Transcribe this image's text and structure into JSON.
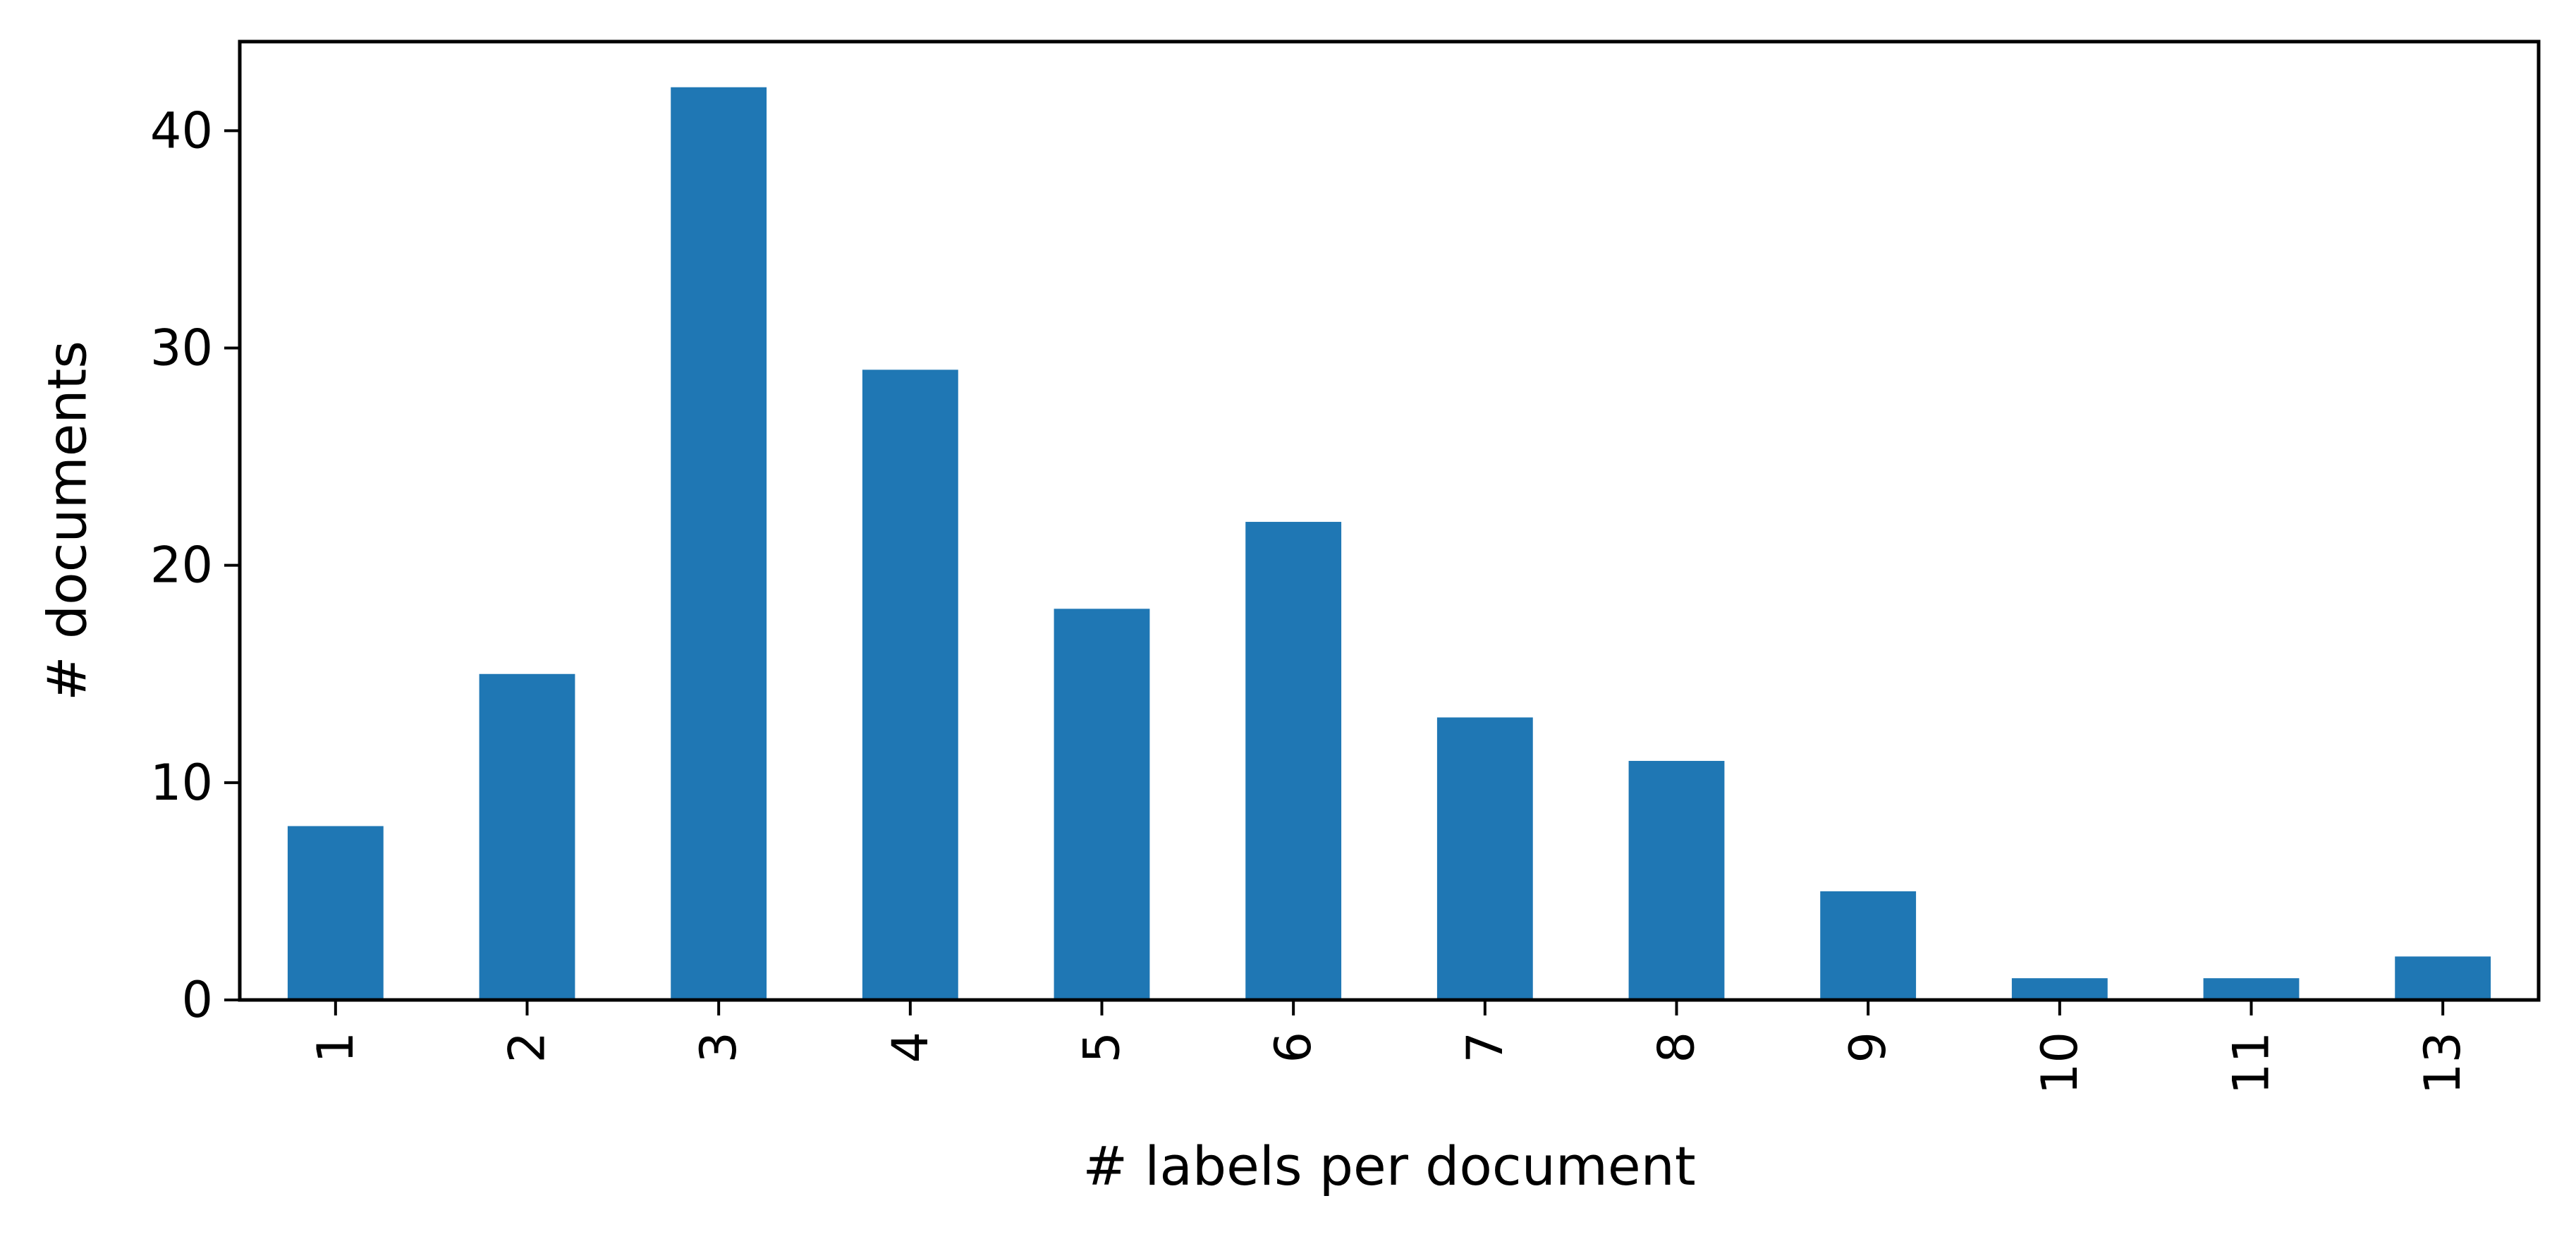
{
  "chart_data": {
    "type": "bar",
    "categories": [
      "1",
      "2",
      "3",
      "4",
      "5",
      "6",
      "7",
      "8",
      "9",
      "10",
      "11",
      "13"
    ],
    "values": [
      8,
      15,
      42,
      29,
      18,
      22,
      13,
      11,
      5,
      1,
      1,
      2
    ],
    "title": "",
    "xlabel": "# labels per document",
    "ylabel": "# documents",
    "ylim": [
      0,
      44.1
    ],
    "yticks": [
      0,
      10,
      20,
      30,
      40
    ],
    "x_tick_rotation": 90,
    "grid": false,
    "legend": "none",
    "bar_color": "#1f77b4"
  }
}
